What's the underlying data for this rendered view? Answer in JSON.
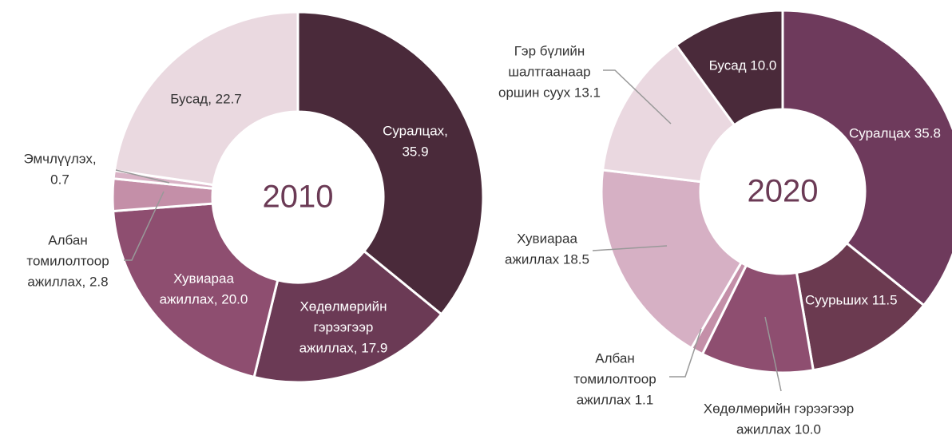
{
  "chart_data": [
    {
      "type": "donut",
      "title": "2010",
      "value_labels": [
        [
          "Суралцах,",
          "35.9"
        ],
        [
          "Хөдөлмөрийн",
          "гэрээгээр",
          "ажиллах, 17.9"
        ],
        [
          "Хувиараа",
          "ажиллах, 20.0"
        ],
        [
          "Албан",
          "томилолтоор",
          "ажиллах, 2.8"
        ],
        [
          "Эмчлүүлэх,",
          "0.7"
        ],
        [
          "Бусад, 22.7"
        ]
      ],
      "values": [
        35.9,
        17.9,
        20.0,
        2.8,
        0.7,
        22.7
      ],
      "colors": [
        "#4a2a3a",
        "#6b3a55",
        "#8e4e70",
        "#c48fa8",
        "#d9b3c6",
        "#ead9e0"
      ]
    },
    {
      "type": "donut",
      "title": "2020",
      "value_labels": [
        [
          "Суралцах 35.8"
        ],
        [
          "Суурьших 11.5"
        ],
        [
          "Хөдөлмөрийн гэрээгээр",
          "ажиллах 10.0"
        ],
        [
          "Албан",
          "томилолтоор",
          "ажиллах 1.1"
        ],
        [
          "Хувиараа",
          "ажиллах 18.5"
        ],
        [
          "Гэр бүлийн",
          "шалтгаанаар",
          "оршин суух 13.1"
        ],
        [
          "Бусад 10.0"
        ]
      ],
      "values": [
        35.8,
        11.5,
        10.0,
        1.1,
        18.5,
        13.1,
        10.0
      ],
      "colors": [
        "#6e3a5c",
        "#6b3a50",
        "#8e4e70",
        "#c48fa8",
        "#d6b0c4",
        "#ead8e0",
        "#4a2a3a"
      ]
    }
  ]
}
